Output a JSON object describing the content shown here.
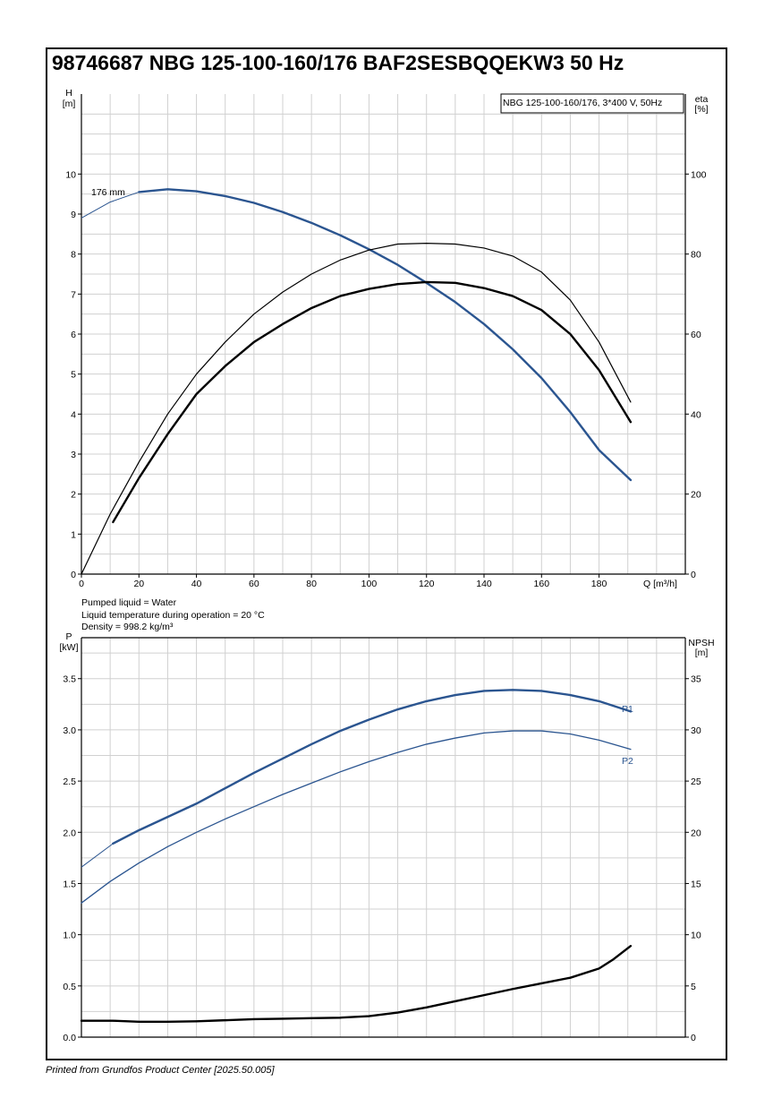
{
  "page": {
    "title": "98746687 NBG 125-100-160/176 BAF2SESBQQEKW3 50 Hz",
    "footer": "Printed from Grundfos Product Center [2025.50.005]"
  },
  "fluid": {
    "line1": "Pumped liquid = Water",
    "line2": "Liquid temperature during operation = 20 °C",
    "line3": "Density = 998.2 kg/m³"
  },
  "colors": {
    "curve_blue": "#2b5590",
    "curve_black": "#000000",
    "grid": "#d0d0d0"
  },
  "chart_data": [
    {
      "type": "line",
      "legend_box": "NBG 125-100-160/176, 3*400 V, 50Hz",
      "xlabel": "Q [m³/h]",
      "xlim": [
        0,
        210
      ],
      "x_ticks": [
        "0",
        "20",
        "40",
        "60",
        "80",
        "100",
        "120",
        "140",
        "160",
        "180"
      ],
      "ylabel_left": [
        "H",
        "[m]"
      ],
      "ylim_left": [
        0,
        12
      ],
      "y_ticks_left": [
        "0",
        "1",
        "2",
        "3",
        "4",
        "5",
        "6",
        "7",
        "8",
        "9",
        "10"
      ],
      "ylabel_right": [
        "eta",
        "[%]"
      ],
      "ylim_right": [
        0,
        120
      ],
      "y_ticks_right": [
        "0",
        "20",
        "40",
        "60",
        "80",
        "100"
      ],
      "grid": true,
      "series": [
        {
          "name": "176 mm",
          "axis": "left",
          "color": "#2b5590",
          "x": [
            0,
            10,
            20,
            30,
            40,
            50,
            60,
            70,
            80,
            90,
            100,
            110,
            120,
            130,
            140,
            150,
            160,
            170,
            180,
            191
          ],
          "y": [
            8.9,
            9.3,
            9.55,
            9.62,
            9.57,
            9.45,
            9.28,
            9.05,
            8.78,
            8.47,
            8.12,
            7.73,
            7.28,
            6.8,
            6.25,
            5.62,
            4.9,
            4.05,
            3.1,
            2.35
          ],
          "thin_until_x": 11
        },
        {
          "axis": "right",
          "color": "#000000",
          "width": 1.2,
          "x": [
            0,
            10,
            20,
            30,
            40,
            50,
            60,
            70,
            80,
            90,
            100,
            110,
            120,
            130,
            140,
            150,
            160,
            170,
            180,
            191
          ],
          "y": [
            0,
            15,
            28,
            40,
            50,
            58,
            65,
            70.5,
            75,
            78.5,
            81,
            82.5,
            82.7,
            82.5,
            81.5,
            79.5,
            75.5,
            68.5,
            58,
            43
          ]
        },
        {
          "axis": "right",
          "color": "#000000",
          "width": 2.4,
          "x": [
            11,
            20,
            30,
            40,
            50,
            60,
            70,
            80,
            90,
            100,
            110,
            120,
            130,
            140,
            150,
            160,
            170,
            180,
            191
          ],
          "y": [
            13,
            24,
            35,
            45,
            52,
            58,
            62.5,
            66.5,
            69.5,
            71.3,
            72.5,
            73,
            72.8,
            71.5,
            69.5,
            66,
            60,
            51,
            38
          ]
        }
      ]
    },
    {
      "type": "line",
      "xlim": [
        0,
        210
      ],
      "ylabel_left": [
        "P",
        "[kW]"
      ],
      "ylim_left": [
        0,
        3.9
      ],
      "y_ticks_left": [
        "0.0",
        "0.5",
        "1.0",
        "1.5",
        "2.0",
        "2.5",
        "3.0",
        "3.5"
      ],
      "ylabel_right": [
        "NPSH",
        "[m]"
      ],
      "ylim_right": [
        0,
        39
      ],
      "y_ticks_right": [
        "0",
        "5",
        "10",
        "15",
        "20",
        "25",
        "30",
        "35"
      ],
      "grid": true,
      "series": [
        {
          "name": "P1",
          "axis": "left",
          "color": "#2b5590",
          "x": [
            0,
            11,
            20,
            30,
            40,
            50,
            60,
            70,
            80,
            90,
            100,
            110,
            120,
            130,
            140,
            150,
            160,
            170,
            180,
            191
          ],
          "y": [
            1.66,
            1.89,
            2.02,
            2.15,
            2.28,
            2.43,
            2.58,
            2.72,
            2.86,
            2.99,
            3.1,
            3.2,
            3.28,
            3.34,
            3.38,
            3.39,
            3.38,
            3.34,
            3.28,
            3.18
          ],
          "thin_until_x": 11
        },
        {
          "name": "P2",
          "axis": "left",
          "color": "#2b5590",
          "x": [
            0,
            10,
            20,
            30,
            40,
            50,
            60,
            70,
            80,
            90,
            100,
            110,
            120,
            130,
            140,
            150,
            160,
            170,
            180,
            191
          ],
          "y": [
            1.31,
            1.52,
            1.7,
            1.86,
            2.0,
            2.13,
            2.25,
            2.37,
            2.48,
            2.59,
            2.69,
            2.78,
            2.86,
            2.92,
            2.97,
            2.99,
            2.99,
            2.96,
            2.9,
            2.81
          ]
        },
        {
          "axis": "right",
          "color": "#000000",
          "width": 2.4,
          "x": [
            0,
            11,
            20,
            30,
            40,
            50,
            60,
            70,
            80,
            90,
            100,
            110,
            120,
            130,
            140,
            150,
            160,
            170,
            180,
            185,
            191
          ],
          "y": [
            1.6,
            1.6,
            1.5,
            1.5,
            1.55,
            1.65,
            1.75,
            1.8,
            1.85,
            1.9,
            2.05,
            2.4,
            2.9,
            3.5,
            4.1,
            4.7,
            5.25,
            5.8,
            6.7,
            7.6,
            8.9
          ]
        }
      ]
    }
  ]
}
